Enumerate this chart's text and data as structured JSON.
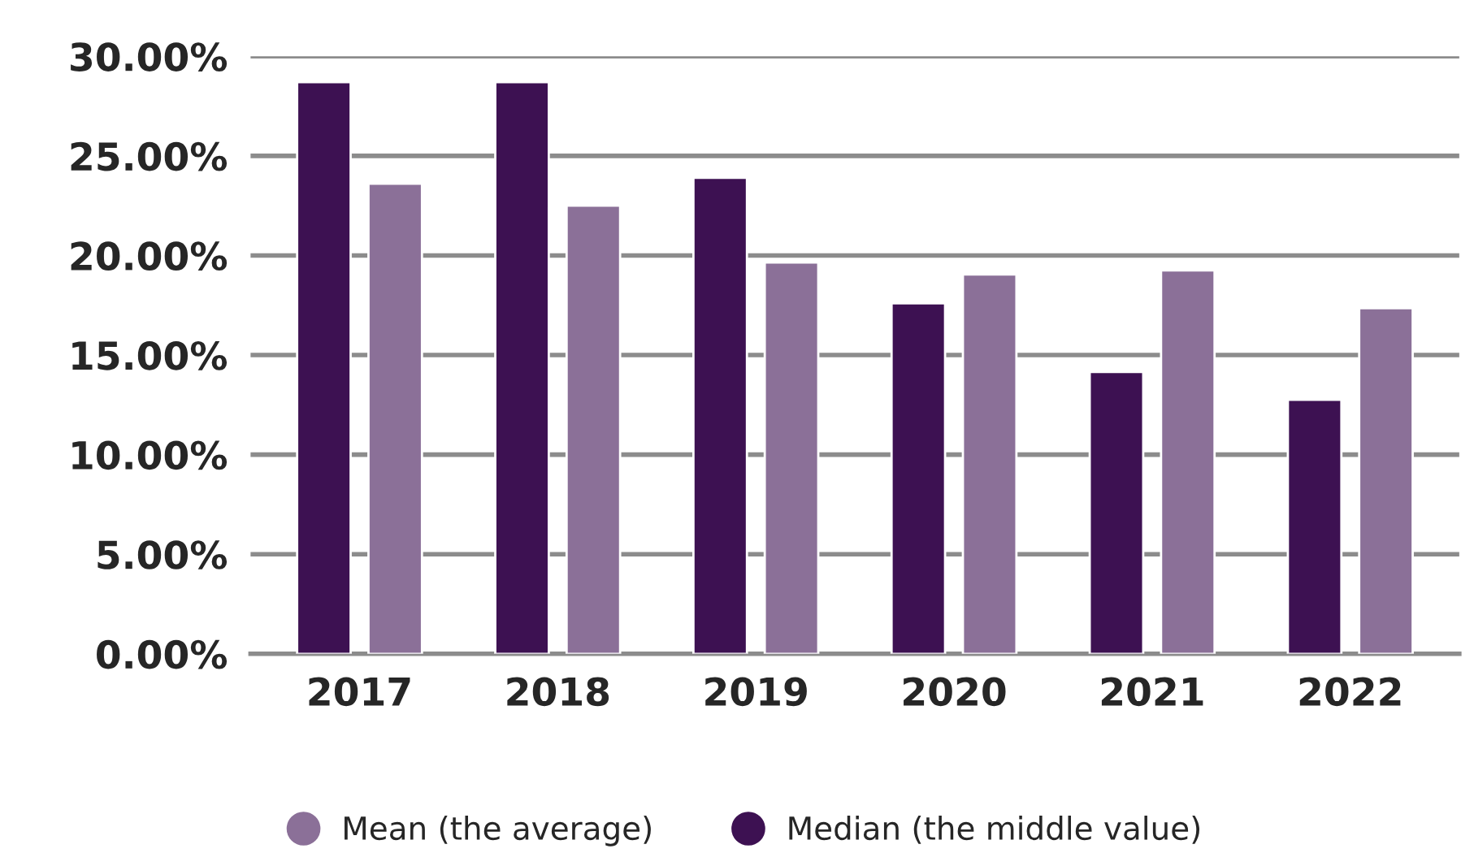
{
  "chart_data": {
    "type": "bar",
    "categories": [
      "2017",
      "2018",
      "2019",
      "2020",
      "2021",
      "2022"
    ],
    "series": [
      {
        "name": "Median (the middle value)",
        "color": "#3d1152",
        "values": [
          28.7,
          28.7,
          23.9,
          17.6,
          14.15,
          12.75
        ]
      },
      {
        "name": "Mean (the average)",
        "color": "#8b7098",
        "values": [
          23.6,
          22.5,
          19.65,
          19.05,
          19.25,
          17.35
        ]
      }
    ],
    "ylim": [
      0,
      30
    ],
    "yticks": [
      {
        "value": 0,
        "label": "0.00%"
      },
      {
        "value": 5,
        "label": "5.00%"
      },
      {
        "value": 10,
        "label": "10.00%"
      },
      {
        "value": 15,
        "label": "15.00%"
      },
      {
        "value": 20,
        "label": "20.00%"
      },
      {
        "value": 25,
        "label": "25.00%"
      },
      {
        "value": 30,
        "label": "30.00%"
      }
    ],
    "grid": "y",
    "legend": "bottom"
  }
}
